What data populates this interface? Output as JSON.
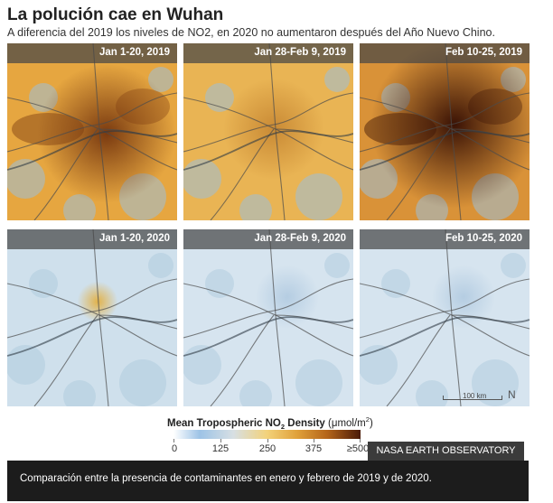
{
  "header": {
    "title": "La polución cae en Wuhan",
    "subtitle": "A diferencia del 2019 los niveles de NO2, en 2020 no aumentaron después del Año Nuevo Chino."
  },
  "panels": [
    {
      "label": "Jan 1-20, 2019",
      "level": "high"
    },
    {
      "label": "Jan 28-Feb 9, 2019",
      "level": "medium"
    },
    {
      "label": "Feb 10-25, 2019",
      "level": "very-high"
    },
    {
      "label": "Jan 1-20, 2020",
      "level": "low-with-hotspot"
    },
    {
      "label": "Jan 28-Feb 9, 2020",
      "level": "very-low"
    },
    {
      "label": "Feb 10-25, 2020",
      "level": "very-low"
    }
  ],
  "map": {
    "scale_label": "100 km",
    "north_symbol": "N"
  },
  "legend": {
    "title_prefix": "Mean Tropospheric NO",
    "title_sub": "2",
    "title_suffix": " Density ",
    "unit_open": "(μmol/m",
    "unit_sup": "2",
    "unit_close": ")",
    "ticks": [
      "0",
      "125",
      "250",
      "375",
      "≥500"
    ],
    "colors": {
      "low": "#9dc3e6",
      "mid": "#f3d27a",
      "high": "#b5651a",
      "max": "#4a1a08"
    }
  },
  "credit": "NASA EARTH OBSERVATORY",
  "caption": "Comparación entre la presencia de contaminantes en enero y febrero de 2019 y de 2020."
}
